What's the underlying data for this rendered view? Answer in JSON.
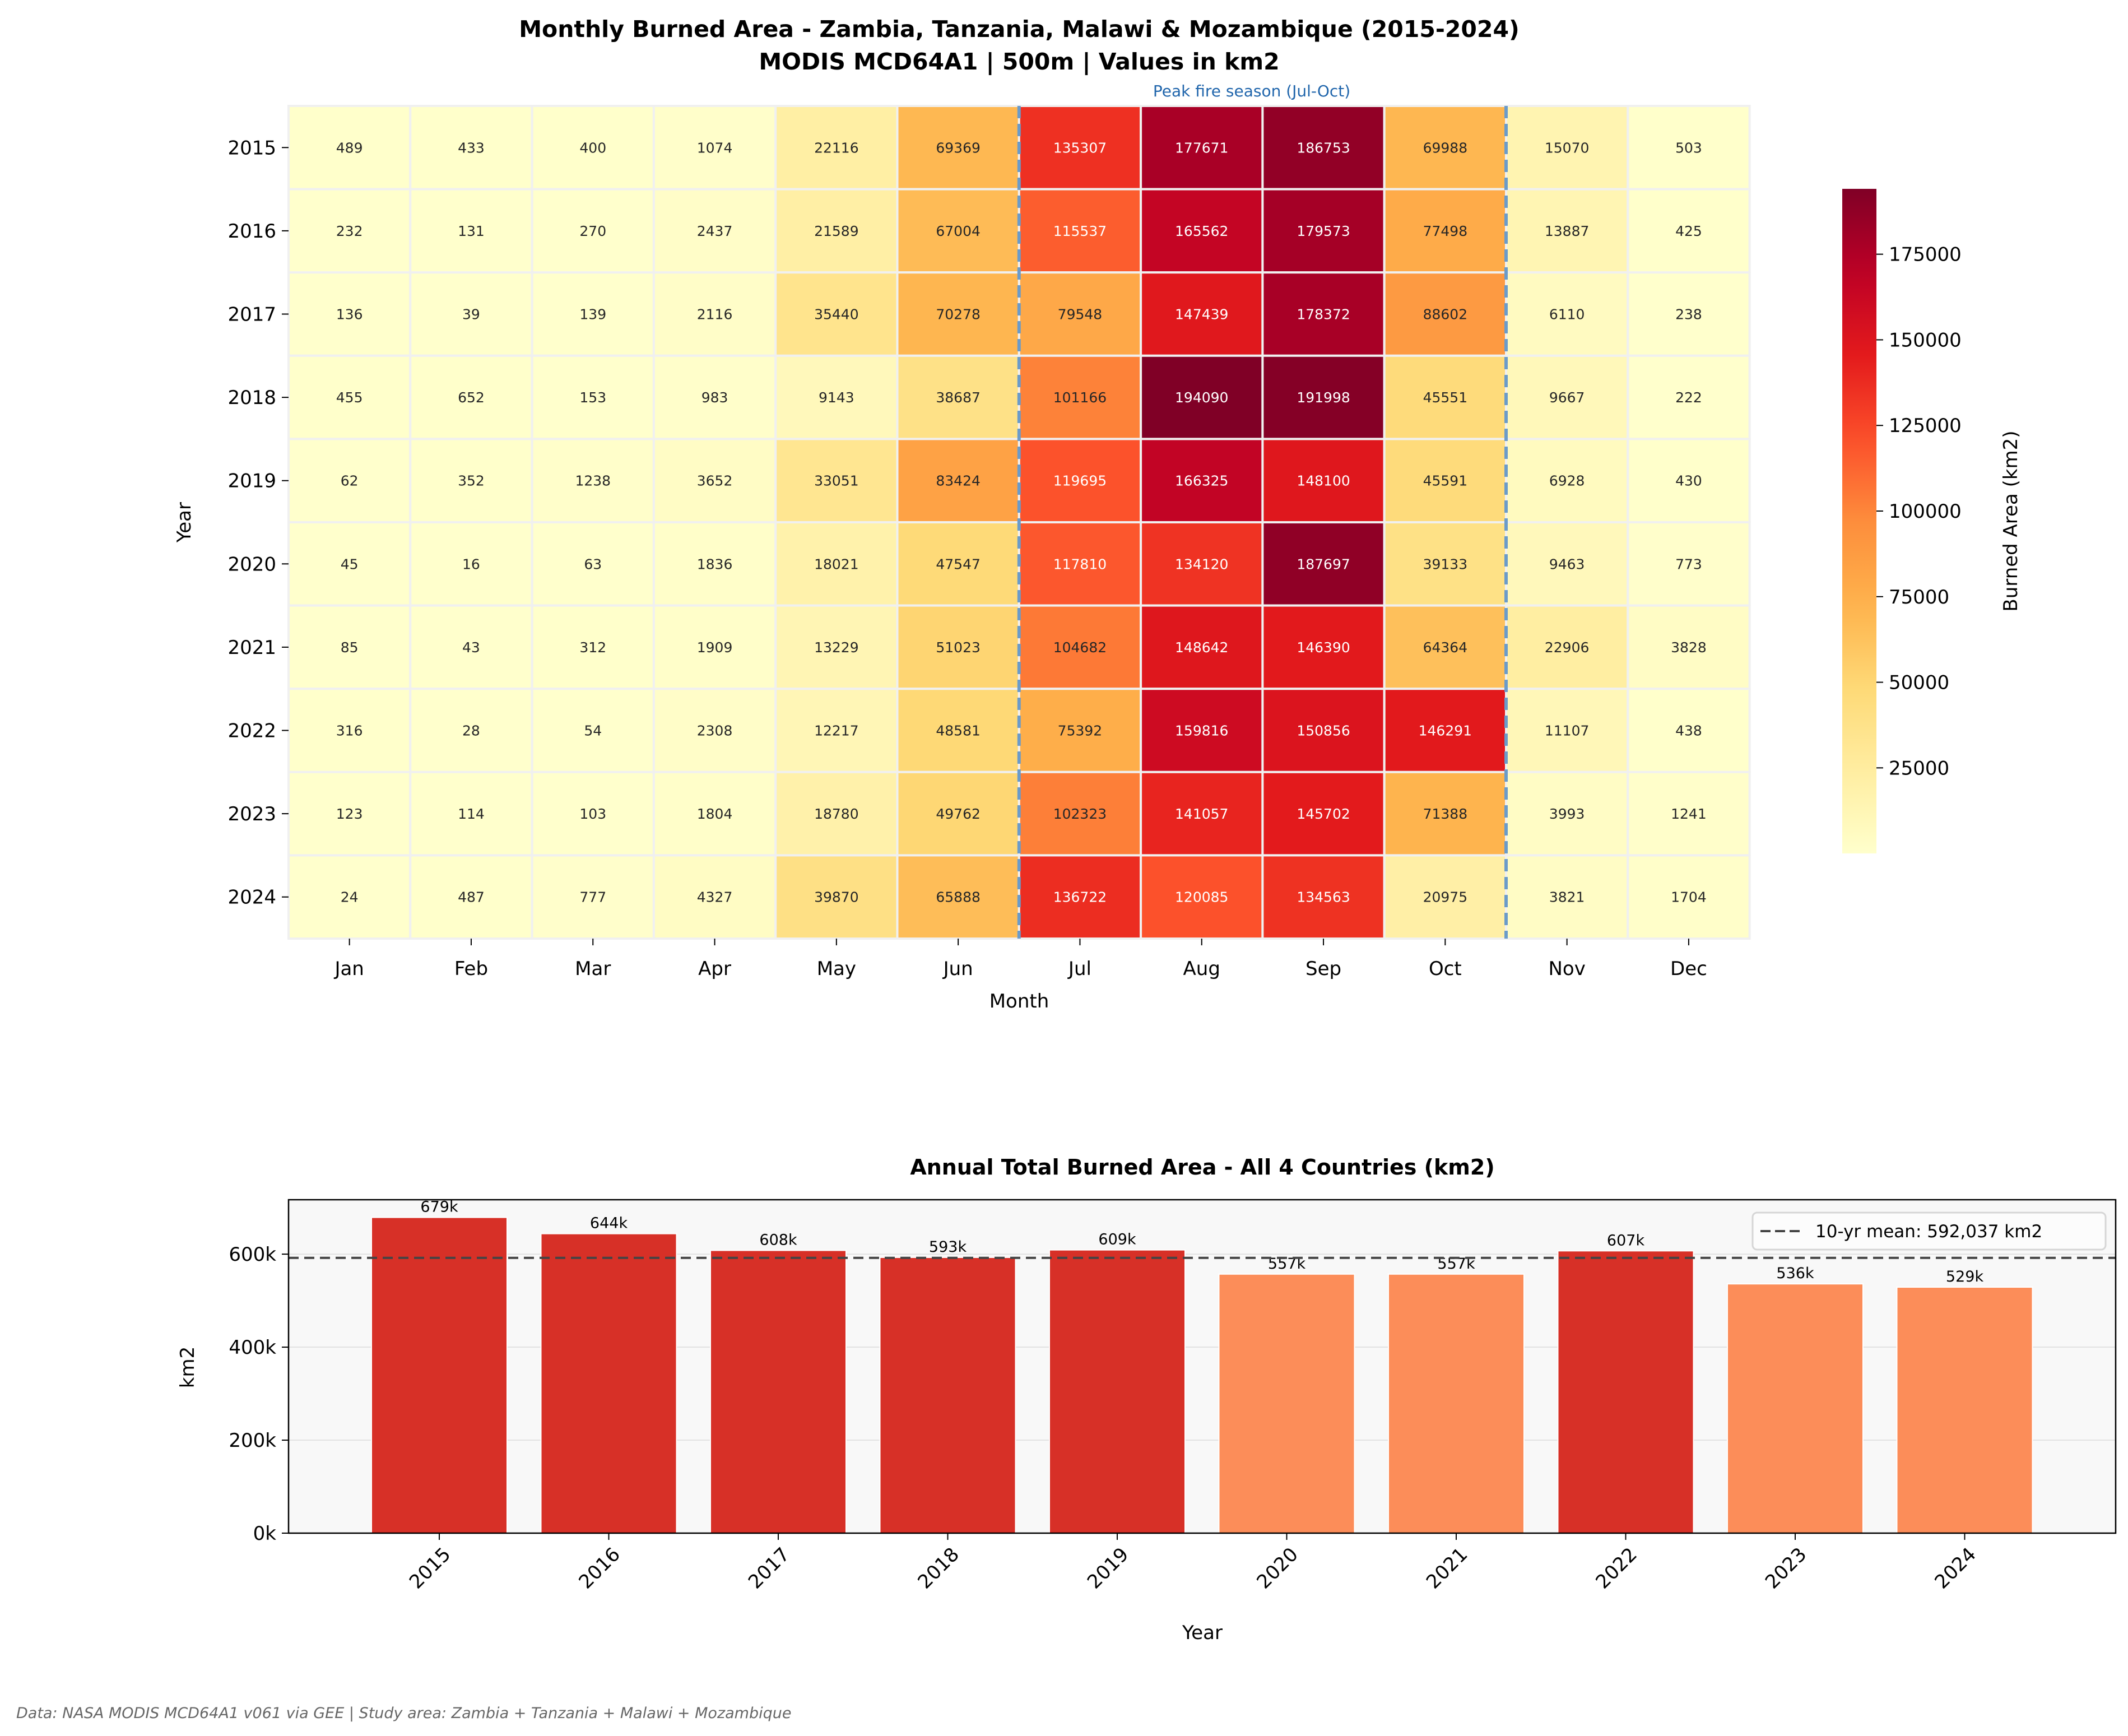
{
  "title_line1": "Monthly Burned Area - Zambia, Tanzania, Malawi & Mozambique (2015-2024)",
  "title_line2": "MODIS MCD64A1 | 500m | Values in km2",
  "footer": "Data: NASA MODIS MCD64A1 v061 via GEE | Study area: Zambia + Tanzania + Malawi + Mozambique",
  "chart_data": [
    {
      "type": "heatmap",
      "xlabel": "Month",
      "ylabel": "Year",
      "colormap": "YlOrRd",
      "colorbar_label": "Burned Area (km2)",
      "colorbar_ticks": [
        25000,
        50000,
        75000,
        100000,
        125000,
        150000,
        175000
      ],
      "colorbar_range": [
        16,
        194090
      ],
      "annotation": "Peak fire season (Jul-Oct)",
      "annotation_color": "#2166ac",
      "highlight_months": [
        "Jul",
        "Oct"
      ],
      "months": [
        "Jan",
        "Feb",
        "Mar",
        "Apr",
        "May",
        "Jun",
        "Jul",
        "Aug",
        "Sep",
        "Oct",
        "Nov",
        "Dec"
      ],
      "years": [
        "2015",
        "2016",
        "2017",
        "2018",
        "2019",
        "2020",
        "2021",
        "2022",
        "2023",
        "2024"
      ],
      "values": [
        [
          489,
          433,
          400,
          1074,
          22116,
          69369,
          135307,
          177671,
          186753,
          69988,
          15070,
          503
        ],
        [
          232,
          131,
          270,
          2437,
          21589,
          67004,
          115537,
          165562,
          179573,
          77498,
          13887,
          425
        ],
        [
          136,
          39,
          139,
          2116,
          35440,
          70278,
          79548,
          147439,
          178372,
          88602,
          6110,
          238
        ],
        [
          455,
          652,
          153,
          983,
          9143,
          38687,
          101166,
          194090,
          191998,
          45551,
          9667,
          222
        ],
        [
          62,
          352,
          1238,
          3652,
          33051,
          83424,
          119695,
          166325,
          148100,
          45591,
          6928,
          430
        ],
        [
          45,
          16,
          63,
          1836,
          18021,
          47547,
          117810,
          134120,
          187697,
          39133,
          9463,
          773
        ],
        [
          85,
          43,
          312,
          1909,
          13229,
          51023,
          104682,
          148642,
          146390,
          64364,
          22906,
          3828
        ],
        [
          316,
          28,
          54,
          2308,
          12217,
          48581,
          75392,
          159816,
          150856,
          146291,
          11107,
          438
        ],
        [
          123,
          114,
          103,
          1804,
          18780,
          49762,
          102323,
          141057,
          145702,
          71388,
          3993,
          1241
        ],
        [
          24,
          487,
          777,
          4327,
          39870,
          65888,
          136722,
          120085,
          134563,
          20975,
          3821,
          1704
        ]
      ]
    },
    {
      "type": "bar",
      "title": "Annual Total Burned Area - All 4 Countries (km2)",
      "xlabel": "Year",
      "ylabel": "km2",
      "categories": [
        "2015",
        "2016",
        "2017",
        "2018",
        "2019",
        "2020",
        "2021",
        "2022",
        "2023",
        "2024"
      ],
      "values": [
        679000,
        644000,
        608000,
        593000,
        609000,
        557000,
        557000,
        607000,
        536000,
        529000
      ],
      "data_labels": [
        "679k",
        "644k",
        "608k",
        "593k",
        "609k",
        "557k",
        "557k",
        "607k",
        "536k",
        "529k"
      ],
      "yticks": [
        "0k",
        "200k",
        "400k",
        "600k"
      ],
      "ytick_values": [
        0,
        200000,
        400000,
        600000
      ],
      "ylim": [
        0,
        717000
      ],
      "grid": true,
      "mean_value": 592037,
      "legend": "10-yr mean: 592,037 km2",
      "legend_placement": "top-right",
      "colors": {
        "above_mean": "#d73027",
        "below_mean": "#fc8d59",
        "mean_line": "#444444",
        "axes_bg": "#f8f8f8"
      }
    }
  ]
}
